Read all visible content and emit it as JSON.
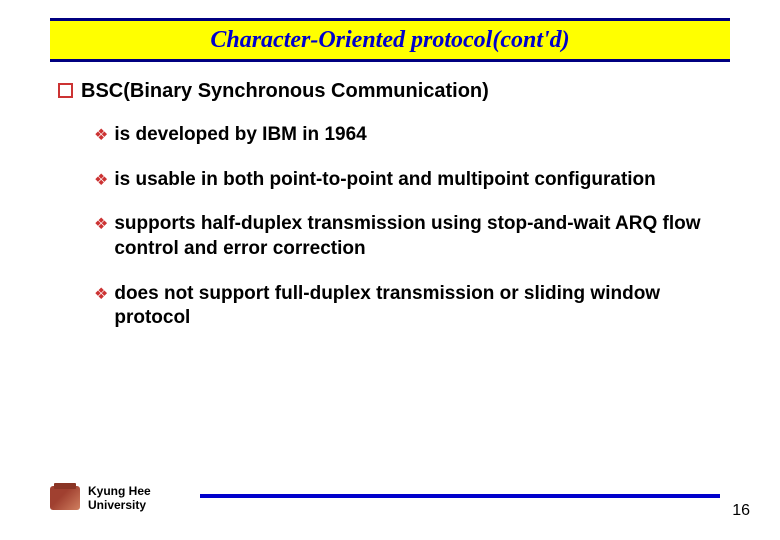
{
  "title": "Character-Oriented protocol(cont'd)",
  "heading": "BSC(Binary Synchronous Communication)",
  "bullets": [
    "is developed by IBM in 1964",
    "is usable in both point-to-point and multipoint configuration",
    "supports half-duplex transmission using stop-and-wait ARQ flow control and error correction",
    "does not support full-duplex transmission or sliding window protocol"
  ],
  "footer": {
    "university_line1": "Kyung Hee",
    "university_line2": "University",
    "page_number": "16"
  },
  "colors": {
    "title_bg": "#ffff00",
    "title_border": "#000080",
    "title_text": "#0000cc",
    "bullet_accent": "#cc3333",
    "body_text": "#000000",
    "footer_line": "#0000cc"
  }
}
